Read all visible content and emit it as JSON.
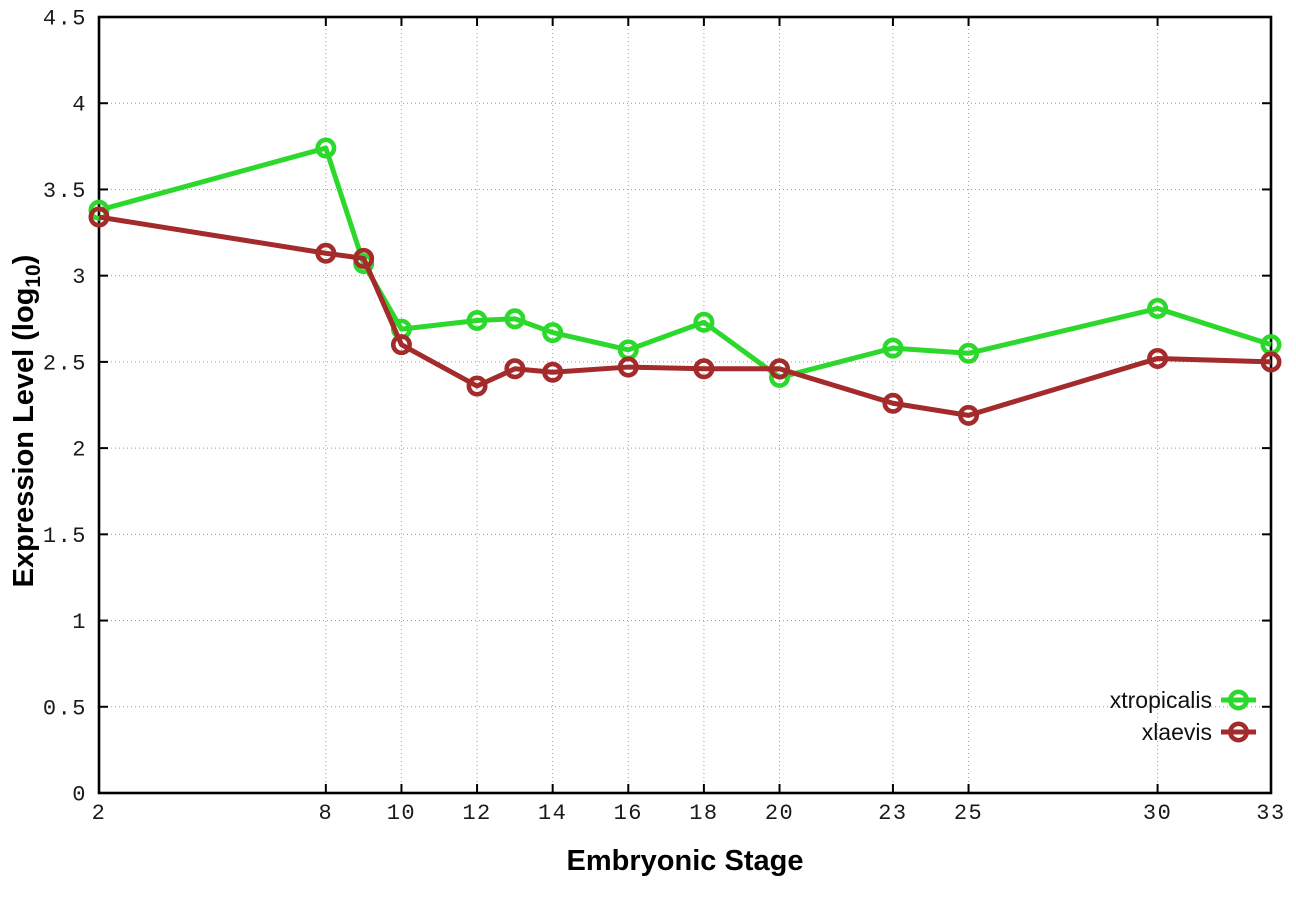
{
  "chart_data": {
    "type": "line",
    "title": "",
    "xlabel": "Embryonic Stage",
    "ylabel": "Expression Level (log10)",
    "ylabel_parts": {
      "main": "Expression Level (log",
      "sub": "10",
      "close": ")"
    },
    "xlim": [
      2,
      33
    ],
    "ylim": [
      0,
      4.5
    ],
    "xticks": [
      2,
      8,
      10,
      12,
      14,
      16,
      18,
      20,
      23,
      25,
      30,
      33
    ],
    "yticks": [
      0,
      0.5,
      1,
      1.5,
      2,
      2.5,
      3,
      3.5,
      4,
      4.5
    ],
    "grid": true,
    "grid_style": "dotted",
    "legend_position": "bottom-right",
    "marker_style": "open-circle",
    "x": [
      2,
      8,
      9,
      10,
      12,
      13,
      14,
      16,
      18,
      20,
      23,
      25,
      30,
      33
    ],
    "series": [
      {
        "name": "xtropicalis",
        "color": "#2cd82c",
        "values": [
          3.38,
          3.74,
          3.07,
          2.69,
          2.74,
          2.75,
          2.67,
          2.57,
          2.73,
          2.41,
          2.58,
          2.55,
          2.81,
          2.6
        ]
      },
      {
        "name": "xlaevis",
        "color": "#a32b2b",
        "values": [
          3.34,
          3.13,
          3.1,
          2.6,
          2.36,
          2.46,
          2.44,
          2.47,
          2.46,
          2.46,
          2.26,
          2.19,
          2.52,
          2.5
        ]
      }
    ]
  },
  "style": {
    "frame_color": "#000000",
    "grid_color": "#9c9c9c",
    "tick_label_color": "#1a1a1a",
    "legend_text_color": "#111111",
    "background": "#ffffff"
  }
}
